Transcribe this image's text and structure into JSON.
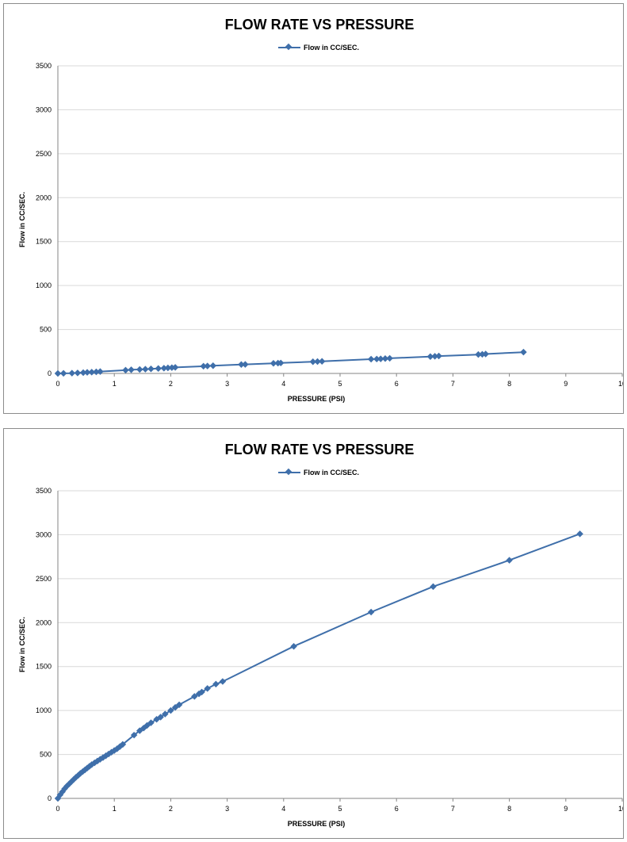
{
  "chart_data": [
    {
      "type": "line",
      "title": "FLOW RATE VS PRESSURE",
      "xlabel": "PRESSURE (PSI)",
      "ylabel": "Flow in CC/SEC.",
      "xlim": [
        0,
        10
      ],
      "ylim": [
        0,
        3500
      ],
      "xticks": [
        "0",
        "1",
        "2",
        "3",
        "4",
        "5",
        "6",
        "7",
        "8",
        "9",
        "10"
      ],
      "yticks": [
        "0",
        "500",
        "1000",
        "1500",
        "2000",
        "2500",
        "3000",
        "3500"
      ],
      "legend_position": "top-center",
      "grid": "horizontal",
      "series_color": "#3f6faa",
      "series": [
        {
          "name": "Flow in CC/SEC.",
          "x": [
            0,
            0.1,
            0.25,
            0.35,
            0.45,
            0.52,
            0.6,
            0.68,
            0.75,
            1.2,
            1.3,
            1.45,
            1.55,
            1.65,
            1.78,
            1.88,
            1.95,
            2.02,
            2.08,
            2.58,
            2.65,
            2.75,
            3.25,
            3.32,
            3.82,
            3.9,
            3.95,
            4.52,
            4.6,
            4.68,
            5.55,
            5.65,
            5.72,
            5.8,
            5.88,
            6.6,
            6.68,
            6.75,
            7.45,
            7.52,
            7.58,
            8.25
          ],
          "y": [
            0,
            1,
            3,
            6,
            9,
            12,
            15,
            18,
            21,
            37,
            42,
            45,
            48,
            52,
            56,
            60,
            63,
            66,
            69,
            82,
            85,
            88,
            101,
            103,
            115,
            117,
            119,
            133,
            135,
            138,
            162,
            164,
            166,
            169,
            172,
            192,
            195,
            198,
            215,
            218,
            221,
            242
          ]
        }
      ]
    },
    {
      "type": "line",
      "title": "FLOW RATE VS PRESSURE",
      "xlabel": "PRESSURE (PSI)",
      "ylabel": "Flow in CC/SEC.",
      "xlim": [
        0,
        10
      ],
      "ylim": [
        0,
        3500
      ],
      "xticks": [
        "0",
        "1",
        "2",
        "3",
        "4",
        "5",
        "6",
        "7",
        "8",
        "9",
        "10"
      ],
      "yticks": [
        "0",
        "500",
        "1000",
        "1500",
        "2000",
        "2500",
        "3000",
        "3500"
      ],
      "legend_position": "top-center",
      "grid": "horizontal",
      "series_color": "#3f6faa",
      "series": [
        {
          "name": "Flow in CC/SEC.",
          "x": [
            0,
            0.04,
            0.08,
            0.12,
            0.16,
            0.2,
            0.24,
            0.28,
            0.32,
            0.36,
            0.4,
            0.44,
            0.48,
            0.52,
            0.56,
            0.6,
            0.65,
            0.7,
            0.75,
            0.8,
            0.85,
            0.9,
            0.95,
            1.0,
            1.05,
            1.1,
            1.15,
            1.35,
            1.45,
            1.52,
            1.58,
            1.65,
            1.75,
            1.82,
            1.9,
            2.0,
            2.08,
            2.15,
            2.42,
            2.5,
            2.55,
            2.65,
            2.8,
            2.92,
            4.18,
            5.55,
            6.65,
            8.0,
            9.25
          ],
          "y": [
            0,
            40,
            75,
            110,
            140,
            165,
            190,
            215,
            240,
            262,
            285,
            305,
            325,
            345,
            365,
            385,
            405,
            425,
            445,
            465,
            485,
            505,
            525,
            545,
            565,
            590,
            615,
            720,
            770,
            800,
            830,
            860,
            900,
            925,
            960,
            1000,
            1035,
            1065,
            1160,
            1190,
            1210,
            1250,
            1300,
            1330,
            1730,
            2120,
            2410,
            2710,
            3010
          ]
        }
      ]
    }
  ]
}
